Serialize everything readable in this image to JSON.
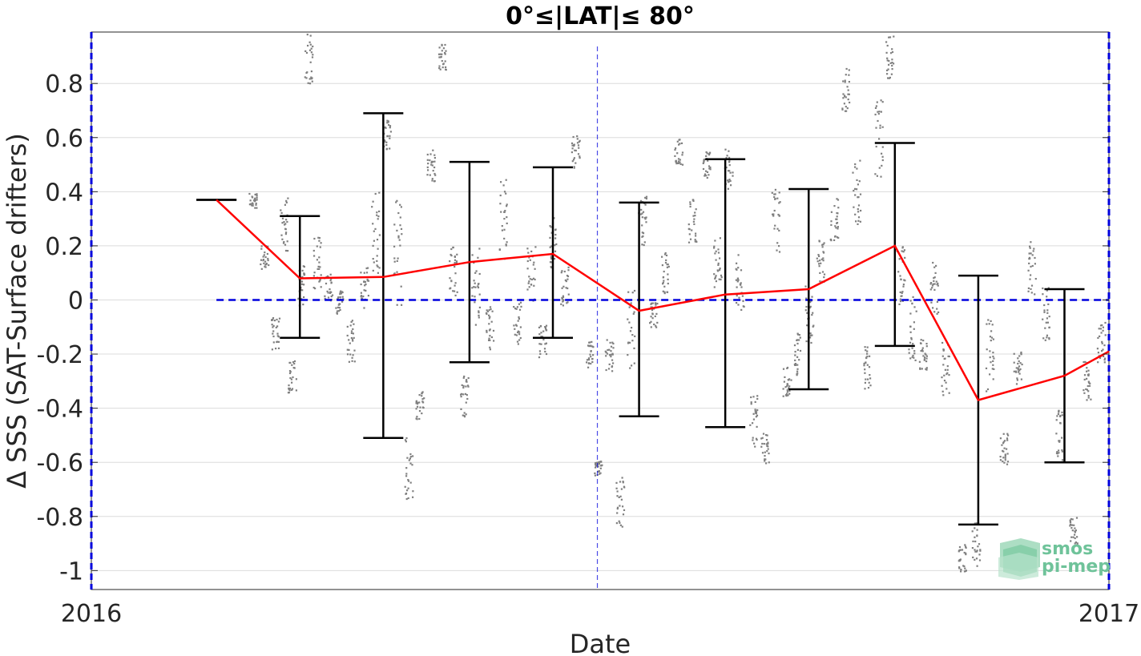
{
  "chart_data": {
    "type": "line",
    "title": "0°≤|LAT|≤ 80°",
    "xlabel": "Date",
    "ylabel": "Δ SSS (SAT-Surface drifters)",
    "xlim": [
      "2016-01-01",
      "2017-01-01"
    ],
    "ylim": [
      -1.07,
      0.99
    ],
    "x_tick_labels": [
      {
        "date": "2016-01-01",
        "label": "2016"
      },
      {
        "date": "2017-01-01",
        "label": "2017"
      }
    ],
    "y_ticks": [
      -1,
      -0.8,
      -0.6,
      -0.4,
      -0.2,
      0,
      0.2,
      0.4,
      0.6,
      0.8
    ],
    "y_tick_labels": [
      "-1",
      "-0.8",
      "-0.6",
      "-0.4",
      "-0.2",
      "0",
      "0.2",
      "0.4",
      "0.6",
      "0.8"
    ],
    "grid": "horizontal",
    "mean_series": {
      "color": "#ff0000",
      "x": [
        "2016-02-15",
        "2016-03-16",
        "2016-04-15",
        "2016-05-16",
        "2016-06-15",
        "2016-07-16",
        "2016-08-16",
        "2016-09-15",
        "2016-10-16",
        "2016-11-15",
        "2016-12-16",
        "2017-01-01"
      ],
      "y": [
        0.37,
        0.08,
        0.085,
        0.14,
        0.17,
        -0.04,
        0.02,
        0.04,
        0.2,
        -0.37,
        -0.28,
        -0.19
      ]
    },
    "error_bars": [
      {
        "x": "2016-02-15",
        "low": 0.37,
        "high": 0.37
      },
      {
        "x": "2016-03-16",
        "low": -0.14,
        "high": 0.31
      },
      {
        "x": "2016-04-15",
        "low": -0.51,
        "high": 0.69
      },
      {
        "x": "2016-05-16",
        "low": -0.23,
        "high": 0.51
      },
      {
        "x": "2016-06-15",
        "low": -0.14,
        "high": 0.49
      },
      {
        "x": "2016-07-16",
        "low": -0.43,
        "high": 0.36
      },
      {
        "x": "2016-08-16",
        "low": -0.47,
        "high": 0.52
      },
      {
        "x": "2016-09-15",
        "low": -0.33,
        "high": 0.41
      },
      {
        "x": "2016-10-16",
        "low": -0.17,
        "high": 0.58
      },
      {
        "x": "2016-11-15",
        "low": -0.83,
        "high": 0.09
      },
      {
        "x": "2016-12-16",
        "low": -0.6,
        "high": 0.04
      }
    ],
    "zero_line": {
      "y": 0,
      "x_start": "2016-02-15",
      "color": "#0000dd",
      "style": "dashed"
    },
    "boundary_lines": {
      "x": [
        "2016-01-01",
        "2016-07-01",
        "2017-01-01"
      ],
      "color": "#0000dd",
      "style": "dashed"
    },
    "scatter_color": "#808080",
    "scatter_clusters": [
      {
        "x": "2016-02-28",
        "y": 0.37,
        "spread": 0.03
      },
      {
        "x": "2016-03-03",
        "y": 0.16,
        "spread": 0.05
      },
      {
        "x": "2016-03-07",
        "y": -0.12,
        "spread": 0.06
      },
      {
        "x": "2016-03-10",
        "y": 0.28,
        "spread": 0.1
      },
      {
        "x": "2016-03-13",
        "y": -0.28,
        "spread": 0.06
      },
      {
        "x": "2016-03-16",
        "y": 0.05,
        "spread": 0.08
      },
      {
        "x": "2016-03-19",
        "y": 0.9,
        "spread": 0.1
      },
      {
        "x": "2016-03-22",
        "y": 0.14,
        "spread": 0.1
      },
      {
        "x": "2016-03-26",
        "y": 0.05,
        "spread": 0.05
      },
      {
        "x": "2016-03-30",
        "y": 0.0,
        "spread": 0.05
      },
      {
        "x": "2016-04-03",
        "y": -0.15,
        "spread": 0.08
      },
      {
        "x": "2016-04-08",
        "y": 0.05,
        "spread": 0.08
      },
      {
        "x": "2016-04-12",
        "y": 0.25,
        "spread": 0.15
      },
      {
        "x": "2016-04-16",
        "y": 0.62,
        "spread": 0.06
      },
      {
        "x": "2016-04-20",
        "y": 0.18,
        "spread": 0.2
      },
      {
        "x": "2016-04-24",
        "y": -0.62,
        "spread": 0.12
      },
      {
        "x": "2016-04-28",
        "y": -0.38,
        "spread": 0.06
      },
      {
        "x": "2016-05-02",
        "y": 0.5,
        "spread": 0.06
      },
      {
        "x": "2016-05-06",
        "y": 0.9,
        "spread": 0.05
      },
      {
        "x": "2016-05-10",
        "y": 0.1,
        "spread": 0.1
      },
      {
        "x": "2016-05-14",
        "y": -0.35,
        "spread": 0.08
      },
      {
        "x": "2016-05-18",
        "y": 0.05,
        "spread": 0.15
      },
      {
        "x": "2016-05-23",
        "y": -0.1,
        "spread": 0.08
      },
      {
        "x": "2016-05-28",
        "y": 0.3,
        "spread": 0.15
      },
      {
        "x": "2016-06-02",
        "y": -0.08,
        "spread": 0.08
      },
      {
        "x": "2016-06-07",
        "y": 0.1,
        "spread": 0.1
      },
      {
        "x": "2016-06-11",
        "y": -0.15,
        "spread": 0.06
      },
      {
        "x": "2016-06-15",
        "y": 0.22,
        "spread": 0.1
      },
      {
        "x": "2016-06-19",
        "y": 0.05,
        "spread": 0.08
      },
      {
        "x": "2016-06-23",
        "y": 0.55,
        "spread": 0.06
      },
      {
        "x": "2016-06-28",
        "y": -0.2,
        "spread": 0.05
      },
      {
        "x": "2016-07-01",
        "y": -0.62,
        "spread": 0.03
      },
      {
        "x": "2016-07-05",
        "y": -0.2,
        "spread": 0.06
      },
      {
        "x": "2016-07-09",
        "y": -0.75,
        "spread": 0.1
      },
      {
        "x": "2016-07-13",
        "y": -0.1,
        "spread": 0.15
      },
      {
        "x": "2016-07-17",
        "y": 0.3,
        "spread": 0.1
      },
      {
        "x": "2016-07-21",
        "y": -0.05,
        "spread": 0.05
      },
      {
        "x": "2016-07-25",
        "y": 0.1,
        "spread": 0.08
      },
      {
        "x": "2016-07-30",
        "y": 0.55,
        "spread": 0.05
      },
      {
        "x": "2016-08-04",
        "y": 0.3,
        "spread": 0.1
      },
      {
        "x": "2016-08-09",
        "y": 0.5,
        "spread": 0.05
      },
      {
        "x": "2016-08-13",
        "y": 0.15,
        "spread": 0.1
      },
      {
        "x": "2016-08-17",
        "y": 0.48,
        "spread": 0.08
      },
      {
        "x": "2016-08-21",
        "y": 0.05,
        "spread": 0.12
      },
      {
        "x": "2016-08-26",
        "y": -0.45,
        "spread": 0.1
      },
      {
        "x": "2016-08-30",
        "y": -0.55,
        "spread": 0.06
      },
      {
        "x": "2016-09-03",
        "y": 0.3,
        "spread": 0.12
      },
      {
        "x": "2016-09-07",
        "y": -0.3,
        "spread": 0.06
      },
      {
        "x": "2016-09-11",
        "y": -0.2,
        "spread": 0.08
      },
      {
        "x": "2016-09-15",
        "y": -0.05,
        "spread": 0.12
      },
      {
        "x": "2016-09-19",
        "y": 0.15,
        "spread": 0.08
      },
      {
        "x": "2016-09-24",
        "y": 0.3,
        "spread": 0.08
      },
      {
        "x": "2016-09-28",
        "y": 0.78,
        "spread": 0.08
      },
      {
        "x": "2016-10-02",
        "y": 0.4,
        "spread": 0.12
      },
      {
        "x": "2016-10-06",
        "y": -0.25,
        "spread": 0.08
      },
      {
        "x": "2016-10-10",
        "y": 0.6,
        "spread": 0.15
      },
      {
        "x": "2016-10-14",
        "y": 0.9,
        "spread": 0.08
      },
      {
        "x": "2016-10-18",
        "y": 0.1,
        "spread": 0.12
      },
      {
        "x": "2016-10-22",
        "y": -0.1,
        "spread": 0.12
      },
      {
        "x": "2016-10-26",
        "y": -0.2,
        "spread": 0.06
      },
      {
        "x": "2016-10-30",
        "y": 0.05,
        "spread": 0.1
      },
      {
        "x": "2016-11-03",
        "y": -0.25,
        "spread": 0.1
      },
      {
        "x": "2016-11-09",
        "y": -0.95,
        "spread": 0.05
      },
      {
        "x": "2016-11-14",
        "y": -0.9,
        "spread": 0.08
      },
      {
        "x": "2016-11-19",
        "y": -0.2,
        "spread": 0.15
      },
      {
        "x": "2016-11-24",
        "y": -0.55,
        "spread": 0.06
      },
      {
        "x": "2016-11-29",
        "y": -0.25,
        "spread": 0.06
      },
      {
        "x": "2016-12-04",
        "y": 0.12,
        "spread": 0.1
      },
      {
        "x": "2016-12-09",
        "y": -0.05,
        "spread": 0.1
      },
      {
        "x": "2016-12-14",
        "y": -0.5,
        "spread": 0.1
      },
      {
        "x": "2016-12-19",
        "y": -0.85,
        "spread": 0.05
      },
      {
        "x": "2016-12-24",
        "y": -0.3,
        "spread": 0.08
      },
      {
        "x": "2016-12-29",
        "y": -0.15,
        "spread": 0.08
      }
    ]
  },
  "logo": {
    "line1": "smos",
    "line2": "pi-mep"
  }
}
